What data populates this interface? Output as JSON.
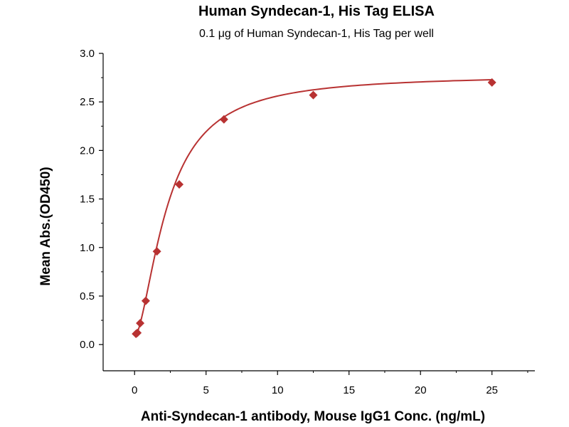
{
  "chart_data": {
    "type": "scatter",
    "title": "Human Syndecan-1, His Tag ELISA",
    "subtitle": "0.1 μg of Human Syndecan-1, His Tag per well",
    "xlabel": "Anti-Syndecan-1 antibody, Mouse IgG1 Conc. (ng/mL)",
    "ylabel": "Mean Abs.(OD450)",
    "xlim": [
      -2.2,
      28
    ],
    "ylim": [
      -0.27,
      3.0
    ],
    "xticks": [
      0,
      5,
      10,
      15,
      20,
      25
    ],
    "yticks": [
      0.0,
      0.5,
      1.0,
      1.5,
      2.0,
      2.5,
      3.0
    ],
    "ytick_labels": [
      "0.0",
      "0.5",
      "1.0",
      "1.5",
      "2.0",
      "2.5",
      "3.0"
    ],
    "grid": false,
    "marker": "diamond",
    "color": "#b83232",
    "series": [
      {
        "x": [
          0.098,
          0.195,
          0.391,
          0.781,
          1.5625,
          3.125,
          6.25,
          12.5,
          25
        ],
        "y": [
          0.11,
          0.12,
          0.22,
          0.45,
          0.96,
          1.65,
          2.32,
          2.57,
          2.7
        ]
      }
    ],
    "fit_curve": {
      "model": "4PL",
      "bottom": 0.08,
      "top": 2.78,
      "ec50": 2.3,
      "hill": 1.65
    }
  }
}
